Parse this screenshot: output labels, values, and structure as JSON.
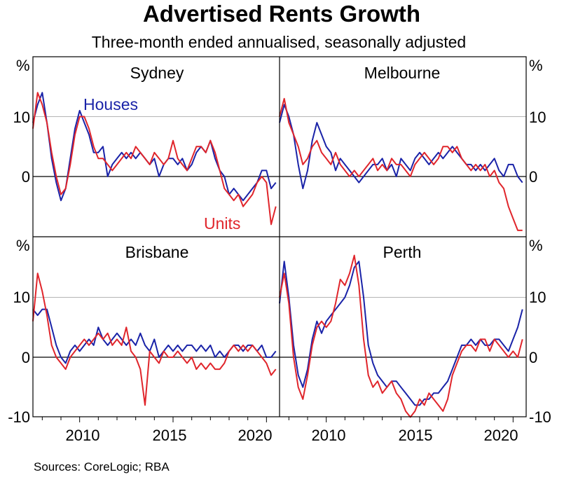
{
  "chart_data": {
    "type": "line",
    "title": "Advertised Rents Growth",
    "subtitle": "Three-month ended annualised, seasonally adjusted",
    "source": "Sources: CoreLogic; RBA",
    "y_unit": "%",
    "ylim": [
      -10,
      20
    ],
    "y_ticks": [
      -10,
      0,
      10
    ],
    "x_ticks": [
      2010,
      2015,
      2020
    ],
    "xlim": [
      2007.5,
      2020.7
    ],
    "colors": {
      "houses": "#1a23a8",
      "units": "#e0252b",
      "grid": "#b5b5b5",
      "axis": "#000000"
    },
    "series_names": [
      "Houses",
      "Units"
    ],
    "y_labels_left": {
      "unit": "%",
      "ticks": [
        "10",
        "0",
        "-10"
      ]
    },
    "y_labels_right": {
      "unit": "%",
      "ticks": [
        "10",
        "0",
        "-10"
      ]
    },
    "x_labels": [
      "2010",
      "2015",
      "2020"
    ],
    "panels": [
      {
        "name": "Sydney",
        "series_labels": {
          "houses": "Houses",
          "units": "Units"
        },
        "series": [
          {
            "name": "Houses",
            "x": [
              2007.5,
              2007.75,
              2008.0,
              2008.25,
              2008.5,
              2008.75,
              2009.0,
              2009.25,
              2009.5,
              2009.75,
              2010.0,
              2010.25,
              2010.5,
              2010.75,
              2011.0,
              2011.25,
              2011.5,
              2011.75,
              2012.0,
              2012.25,
              2012.5,
              2012.75,
              2013.0,
              2013.25,
              2013.5,
              2013.75,
              2014.0,
              2014.25,
              2014.5,
              2014.75,
              2015.0,
              2015.25,
              2015.5,
              2015.75,
              2016.0,
              2016.25,
              2016.5,
              2016.75,
              2017.0,
              2017.25,
              2017.5,
              2017.75,
              2018.0,
              2018.25,
              2018.5,
              2018.75,
              2019.0,
              2019.25,
              2019.5,
              2019.75,
              2020.0,
              2020.25,
              2020.5
            ],
            "y": [
              9,
              12,
              14,
              9,
              3,
              -1,
              -4,
              -2,
              3,
              8,
              11,
              9,
              7,
              4,
              4,
              5,
              0,
              2,
              3,
              4,
              3,
              4,
              3,
              4,
              3,
              2,
              3,
              0,
              2,
              3,
              3,
              2,
              3,
              1,
              2,
              4,
              5,
              4,
              6,
              3,
              1,
              0,
              -3,
              -2,
              -3,
              -4,
              -3,
              -2,
              -1,
              1,
              1,
              -2,
              -1
            ]
          },
          {
            "name": "Units",
            "x": [
              2007.5,
              2007.75,
              2008.0,
              2008.25,
              2008.5,
              2008.75,
              2009.0,
              2009.25,
              2009.5,
              2009.75,
              2010.0,
              2010.25,
              2010.5,
              2010.75,
              2011.0,
              2011.25,
              2011.5,
              2011.75,
              2012.0,
              2012.25,
              2012.5,
              2012.75,
              2013.0,
              2013.25,
              2013.5,
              2013.75,
              2014.0,
              2014.25,
              2014.5,
              2014.75,
              2015.0,
              2015.25,
              2015.5,
              2015.75,
              2016.0,
              2016.25,
              2016.5,
              2016.75,
              2017.0,
              2017.25,
              2017.5,
              2017.75,
              2018.0,
              2018.25,
              2018.5,
              2018.75,
              2019.0,
              2019.25,
              2019.5,
              2019.75,
              2020.0,
              2020.25,
              2020.5
            ],
            "y": [
              8,
              14,
              12,
              9,
              4,
              0,
              -3,
              -2,
              2,
              7,
              10,
              10,
              8,
              5,
              3,
              3,
              2,
              1,
              2,
              3,
              4,
              3,
              5,
              4,
              3,
              2,
              4,
              3,
              2,
              3,
              6,
              3,
              2,
              1,
              3,
              5,
              5,
              4,
              6,
              4,
              1,
              -2,
              -3,
              -4,
              -3,
              -5,
              -4,
              -3,
              -1,
              0,
              -1,
              -8,
              -5
            ]
          }
        ]
      },
      {
        "name": "Melbourne",
        "series_labels": {},
        "series": [
          {
            "name": "Houses",
            "x": [
              2007.5,
              2007.75,
              2008.0,
              2008.25,
              2008.5,
              2008.75,
              2009.0,
              2009.25,
              2009.5,
              2009.75,
              2010.0,
              2010.25,
              2010.5,
              2010.75,
              2011.0,
              2011.25,
              2011.5,
              2011.75,
              2012.0,
              2012.25,
              2012.5,
              2012.75,
              2013.0,
              2013.25,
              2013.5,
              2013.75,
              2014.0,
              2014.25,
              2014.5,
              2014.75,
              2015.0,
              2015.25,
              2015.5,
              2015.75,
              2016.0,
              2016.25,
              2016.5,
              2016.75,
              2017.0,
              2017.25,
              2017.5,
              2017.75,
              2018.0,
              2018.25,
              2018.5,
              2018.75,
              2019.0,
              2019.25,
              2019.5,
              2019.75,
              2020.0,
              2020.25,
              2020.5
            ],
            "y": [
              9,
              12,
              10,
              7,
              2,
              -2,
              1,
              6,
              9,
              7,
              5,
              4,
              1,
              3,
              2,
              1,
              0,
              -1,
              0,
              1,
              2,
              2,
              3,
              1,
              2,
              0,
              3,
              2,
              1,
              3,
              4,
              3,
              2,
              3,
              4,
              3,
              4,
              5,
              4,
              3,
              2,
              2,
              1,
              2,
              1,
              2,
              3,
              1,
              0,
              2,
              2,
              0,
              -1
            ]
          },
          {
            "name": "Units",
            "x": [
              2007.5,
              2007.75,
              2008.0,
              2008.25,
              2008.5,
              2008.75,
              2009.0,
              2009.25,
              2009.5,
              2009.75,
              2010.0,
              2010.25,
              2010.5,
              2010.75,
              2011.0,
              2011.25,
              2011.5,
              2011.75,
              2012.0,
              2012.25,
              2012.5,
              2012.75,
              2013.0,
              2013.25,
              2013.5,
              2013.75,
              2014.0,
              2014.25,
              2014.5,
              2014.75,
              2015.0,
              2015.25,
              2015.5,
              2015.75,
              2016.0,
              2016.25,
              2016.5,
              2016.75,
              2017.0,
              2017.25,
              2017.5,
              2017.75,
              2018.0,
              2018.25,
              2018.5,
              2018.75,
              2019.0,
              2019.25,
              2019.5,
              2019.75,
              2020.0,
              2020.25,
              2020.5
            ],
            "y": [
              10,
              13,
              9,
              7,
              5,
              2,
              3,
              5,
              6,
              4,
              3,
              2,
              4,
              2,
              1,
              0,
              1,
              0,
              1,
              2,
              3,
              1,
              2,
              1,
              3,
              2,
              2,
              1,
              0,
              2,
              3,
              4,
              3,
              2,
              3,
              5,
              5,
              4,
              5,
              3,
              2,
              1,
              2,
              1,
              2,
              0,
              1,
              -1,
              -2,
              -5,
              -7,
              -9,
              -9
            ]
          }
        ]
      },
      {
        "name": "Brisbane",
        "series_labels": {},
        "series": [
          {
            "name": "Houses",
            "x": [
              2007.5,
              2007.75,
              2008.0,
              2008.25,
              2008.5,
              2008.75,
              2009.0,
              2009.25,
              2009.5,
              2009.75,
              2010.0,
              2010.25,
              2010.5,
              2010.75,
              2011.0,
              2011.25,
              2011.5,
              2011.75,
              2012.0,
              2012.25,
              2012.5,
              2012.75,
              2013.0,
              2013.25,
              2013.5,
              2013.75,
              2014.0,
              2014.25,
              2014.5,
              2014.75,
              2015.0,
              2015.25,
              2015.5,
              2015.75,
              2016.0,
              2016.25,
              2016.5,
              2016.75,
              2017.0,
              2017.25,
              2017.5,
              2017.75,
              2018.0,
              2018.25,
              2018.5,
              2018.75,
              2019.0,
              2019.25,
              2019.5,
              2019.75,
              2020.0,
              2020.25,
              2020.5
            ],
            "y": [
              8,
              7,
              8,
              8,
              5,
              2,
              0,
              -1,
              1,
              2,
              1,
              2,
              3,
              2,
              5,
              3,
              2,
              3,
              4,
              3,
              2,
              3,
              2,
              4,
              2,
              1,
              3,
              0,
              1,
              2,
              1,
              2,
              1,
              2,
              2,
              1,
              2,
              1,
              2,
              0,
              1,
              0,
              1,
              2,
              2,
              1,
              2,
              2,
              1,
              2,
              0,
              0,
              1
            ]
          },
          {
            "name": "Units",
            "x": [
              2007.5,
              2007.75,
              2008.0,
              2008.25,
              2008.5,
              2008.75,
              2009.0,
              2009.25,
              2009.5,
              2009.75,
              2010.0,
              2010.25,
              2010.5,
              2010.75,
              2011.0,
              2011.25,
              2011.5,
              2011.75,
              2012.0,
              2012.25,
              2012.5,
              2012.75,
              2013.0,
              2013.25,
              2013.5,
              2013.75,
              2014.0,
              2014.25,
              2014.5,
              2014.75,
              2015.0,
              2015.25,
              2015.5,
              2015.75,
              2016.0,
              2016.25,
              2016.5,
              2016.75,
              2017.0,
              2017.25,
              2017.5,
              2017.75,
              2018.0,
              2018.25,
              2018.5,
              2018.75,
              2019.0,
              2019.25,
              2019.5,
              2019.75,
              2020.0,
              2020.25,
              2020.5
            ],
            "y": [
              6,
              14,
              11,
              7,
              2,
              0,
              -1,
              -2,
              0,
              1,
              2,
              3,
              2,
              3,
              4,
              3,
              4,
              2,
              3,
              2,
              5,
              1,
              0,
              -2,
              -8,
              1,
              0,
              -1,
              1,
              0,
              0,
              1,
              0,
              -1,
              0,
              -2,
              -1,
              -2,
              -1,
              -2,
              -2,
              -1,
              1,
              2,
              1,
              2,
              1,
              2,
              1,
              0,
              -1,
              -3,
              -2
            ]
          }
        ]
      },
      {
        "name": "Perth",
        "series_labels": {},
        "series": [
          {
            "name": "Houses",
            "x": [
              2007.5,
              2007.75,
              2008.0,
              2008.25,
              2008.5,
              2008.75,
              2009.0,
              2009.25,
              2009.5,
              2009.75,
              2010.0,
              2010.25,
              2010.5,
              2010.75,
              2011.0,
              2011.25,
              2011.5,
              2011.75,
              2012.0,
              2012.25,
              2012.5,
              2012.75,
              2013.0,
              2013.25,
              2013.5,
              2013.75,
              2014.0,
              2014.25,
              2014.5,
              2014.75,
              2015.0,
              2015.25,
              2015.5,
              2015.75,
              2016.0,
              2016.25,
              2016.5,
              2016.75,
              2017.0,
              2017.25,
              2017.5,
              2017.75,
              2018.0,
              2018.25,
              2018.5,
              2018.75,
              2019.0,
              2019.25,
              2019.5,
              2019.75,
              2020.0,
              2020.25,
              2020.5
            ],
            "y": [
              9,
              16,
              10,
              2,
              -3,
              -5,
              -2,
              3,
              6,
              4,
              6,
              7,
              8,
              9,
              10,
              12,
              15,
              16,
              10,
              2,
              -1,
              -3,
              -4,
              -5,
              -4,
              -4,
              -5,
              -6,
              -7,
              -8,
              -8,
              -7,
              -7,
              -6,
              -6,
              -5,
              -4,
              -2,
              0,
              2,
              2,
              3,
              2,
              3,
              2,
              2,
              3,
              3,
              2,
              1,
              3,
              5,
              8
            ]
          },
          {
            "name": "Units",
            "x": [
              2007.5,
              2007.75,
              2008.0,
              2008.25,
              2008.5,
              2008.75,
              2009.0,
              2009.25,
              2009.5,
              2009.75,
              2010.0,
              2010.25,
              2010.5,
              2010.75,
              2011.0,
              2011.25,
              2011.5,
              2011.75,
              2012.0,
              2012.25,
              2012.5,
              2012.75,
              2013.0,
              2013.25,
              2013.5,
              2013.75,
              2014.0,
              2014.25,
              2014.5,
              2014.75,
              2015.0,
              2015.25,
              2015.5,
              2015.75,
              2016.0,
              2016.25,
              2016.5,
              2016.75,
              2017.0,
              2017.25,
              2017.5,
              2017.75,
              2018.0,
              2018.25,
              2018.5,
              2018.75,
              2019.0,
              2019.25,
              2019.5,
              2019.75,
              2020.0,
              2020.25,
              2020.5
            ],
            "y": [
              10,
              14,
              9,
              0,
              -5,
              -7,
              -3,
              2,
              5,
              6,
              5,
              6,
              9,
              13,
              12,
              14,
              17,
              12,
              3,
              -3,
              -5,
              -4,
              -6,
              -5,
              -4,
              -6,
              -7,
              -9,
              -10,
              -9,
              -7,
              -8,
              -6,
              -7,
              -8,
              -9,
              -7,
              -3,
              -1,
              1,
              2,
              2,
              1,
              3,
              3,
              1,
              3,
              2,
              1,
              0,
              1,
              0,
              3
            ]
          }
        ]
      }
    ]
  }
}
